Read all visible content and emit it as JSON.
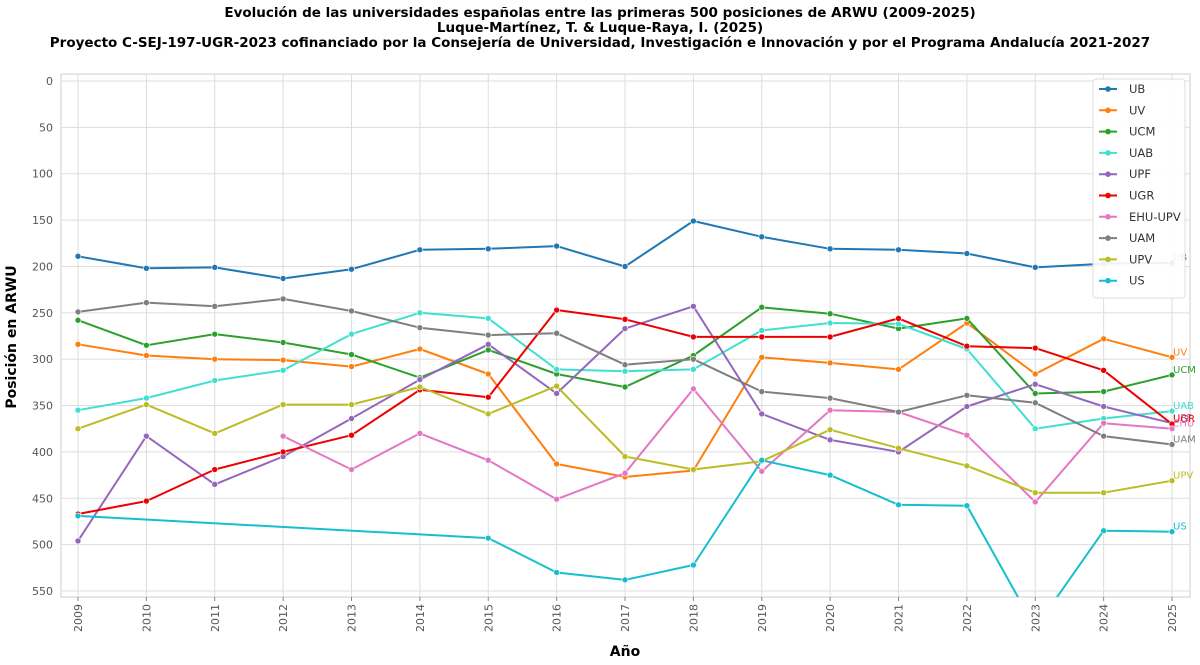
{
  "chart_data": {
    "type": "line",
    "title": "Evolución de las universidades españolas entre las primeras 500 posiciones de ARWU (2009-2025)",
    "subtitle": "Luque-Martínez, T. & Luque-Raya, I. (2025)",
    "subtitle2": "Proyecto C-SEJ-197-UGR-2023 cofinanciado por la Consejería de Universidad, Investigación e Innovación y por el Programa Andalucía 2021-2027",
    "xlabel": "Año",
    "ylabel": "Posición en ARWU",
    "x": [
      2009,
      2010,
      2011,
      2012,
      2013,
      2014,
      2015,
      2016,
      2017,
      2018,
      2019,
      2020,
      2021,
      2022,
      2023,
      2024,
      2025
    ],
    "x_ticks": [
      "2009",
      "2010",
      "2011",
      "2012",
      "2013",
      "2014",
      "2015",
      "2016",
      "2017",
      "2018",
      "2019",
      "2020",
      "2021",
      "2022",
      "2023",
      "2024",
      "2025"
    ],
    "ylim": [
      560,
      -5
    ],
    "y_inverted": true,
    "y_ticks": [
      "0",
      "50",
      "100",
      "150",
      "200",
      "250",
      "300",
      "350",
      "400",
      "450",
      "500",
      "550"
    ],
    "grid": true,
    "legend_position": "top-right",
    "series": [
      {
        "name": "UB",
        "color": "#1f77b4",
        "values": [
          189,
          202,
          201,
          213,
          203,
          182,
          181,
          178,
          200,
          151,
          168,
          181,
          182,
          186,
          201,
          197,
          196
        ]
      },
      {
        "name": "UV",
        "color": "#ff7f0e",
        "values": [
          284,
          296,
          300,
          301,
          308,
          289,
          316,
          413,
          427,
          420,
          298,
          304,
          311,
          261,
          316,
          278,
          298
        ]
      },
      {
        "name": "UCM",
        "color": "#2ca02c",
        "values": [
          258,
          285,
          273,
          282,
          295,
          320,
          290,
          316,
          330,
          296,
          244,
          251,
          267,
          256,
          337,
          335,
          317
        ]
      },
      {
        "name": "UAB",
        "color": "#40e0d0",
        "values": [
          355,
          342,
          323,
          312,
          273,
          250,
          256,
          311,
          313,
          311,
          269,
          261,
          262,
          289,
          375,
          364,
          356
        ]
      },
      {
        "name": "UPF",
        "color": "#9467bd",
        "values": [
          496,
          383,
          435,
          405,
          364,
          322,
          284,
          337,
          267,
          243,
          359,
          387,
          400,
          351,
          327,
          351,
          369
        ]
      },
      {
        "name": "UGR",
        "color": "#ee0000",
        "values": [
          467,
          453,
          419,
          400,
          382,
          333,
          341,
          247,
          257,
          276,
          276,
          276,
          256,
          286,
          288,
          312,
          370
        ]
      },
      {
        "name": "EHU-UPV",
        "color": "#e377c2",
        "values": [
          null,
          null,
          null,
          383,
          419,
          380,
          409,
          451,
          423,
          332,
          421,
          355,
          357,
          382,
          454,
          369,
          375
        ]
      },
      {
        "name": "UAM",
        "color": "#7f7f7f",
        "values": [
          249,
          239,
          243,
          235,
          248,
          266,
          274,
          272,
          306,
          300,
          335,
          342,
          357,
          339,
          347,
          383,
          392
        ]
      },
      {
        "name": "UPV",
        "color": "#bcbd22",
        "values": [
          375,
          349,
          380,
          349,
          349,
          330,
          359,
          329,
          405,
          419,
          410,
          376,
          396,
          415,
          444,
          444,
          431
        ]
      },
      {
        "name": "US",
        "color": "#17becf",
        "values": [
          469,
          null,
          null,
          null,
          null,
          null,
          493,
          530,
          538,
          522,
          409,
          425,
          457,
          458,
          590,
          485,
          486
        ]
      }
    ],
    "end_labels": [
      "UB",
      "UV",
      "UCM",
      "UAB",
      "UPF",
      "UGR",
      "EHU",
      "UAM",
      "UPV",
      "US"
    ]
  }
}
